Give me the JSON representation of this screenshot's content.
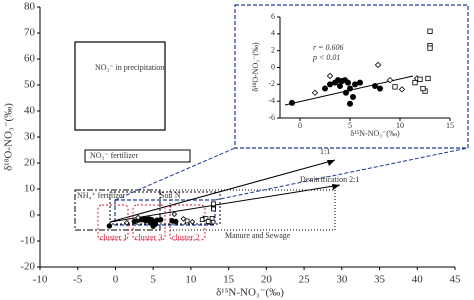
{
  "chart_data": {
    "type": "scatter",
    "x_label": "δ¹⁵N-NO₃⁻(‰)",
    "y_label": "δ¹⁸O-NO₃⁻(‰)",
    "xlim": [
      -10,
      45
    ],
    "xticks": [
      -10,
      -5,
      0,
      5,
      10,
      15,
      20,
      25,
      30,
      35,
      40,
      45
    ],
    "ylim": [
      -20,
      80
    ],
    "yticks": [
      -20,
      -10,
      0,
      10,
      20,
      30,
      40,
      50,
      60,
      70,
      80
    ],
    "annotations": [
      "NO₃⁻ in precipitation",
      "NO₃⁻ fertilizer",
      "NH₄⁺ fertilizer",
      "Soil N",
      "1:1",
      "Denitrification 2:1",
      "Manure and Sewage",
      "cluster 1",
      "cluster 3",
      "cluster 2"
    ],
    "series": [
      {
        "marker": "circle",
        "color": "#000000",
        "x": [
          -0.8,
          2.5,
          3,
          3.5,
          3.8,
          4,
          4.2,
          4.5,
          4.6,
          4.8,
          5,
          5,
          5.3,
          5.5,
          6,
          7.5,
          8
        ],
        "values": [
          -4.2,
          -2.5,
          -2,
          -1.8,
          -1.5,
          -2.2,
          -1.6,
          -1.5,
          -3,
          -1.8,
          -2.5,
          -4.3,
          -3.5,
          -2,
          -1.8,
          -2.2,
          -2.5
        ]
      },
      {
        "marker": "diamond",
        "color": "#000000",
        "x": [
          1.5,
          3,
          7.8,
          9,
          10.2,
          11.7
        ],
        "values": [
          -3,
          -1,
          0.3,
          -1.5,
          -2.6,
          -1.3
        ]
      },
      {
        "marker": "square",
        "color": "#000000",
        "x": [
          13,
          13,
          13,
          11.5,
          12,
          12.8,
          12.5,
          12.3,
          9.5
        ],
        "values": [
          4.3,
          2.6,
          2.3,
          -1.8,
          -1.4,
          -1.3,
          -2.8,
          -2.5,
          -2.3
        ]
      }
    ],
    "inset": {
      "x_label": "δ¹⁵N-NO₃⁻(‰)",
      "y_label": "δ¹⁸O-NO₃⁻(‰)",
      "xlim": [
        -2,
        15
      ],
      "xticks": [
        0,
        5,
        10,
        15
      ],
      "ylim": [
        -6,
        6
      ],
      "yticks": [
        -6,
        -4,
        -2,
        0,
        2,
        4,
        6
      ],
      "annotations": [
        "r = 0.606",
        "p < 0.01"
      ]
    }
  }
}
